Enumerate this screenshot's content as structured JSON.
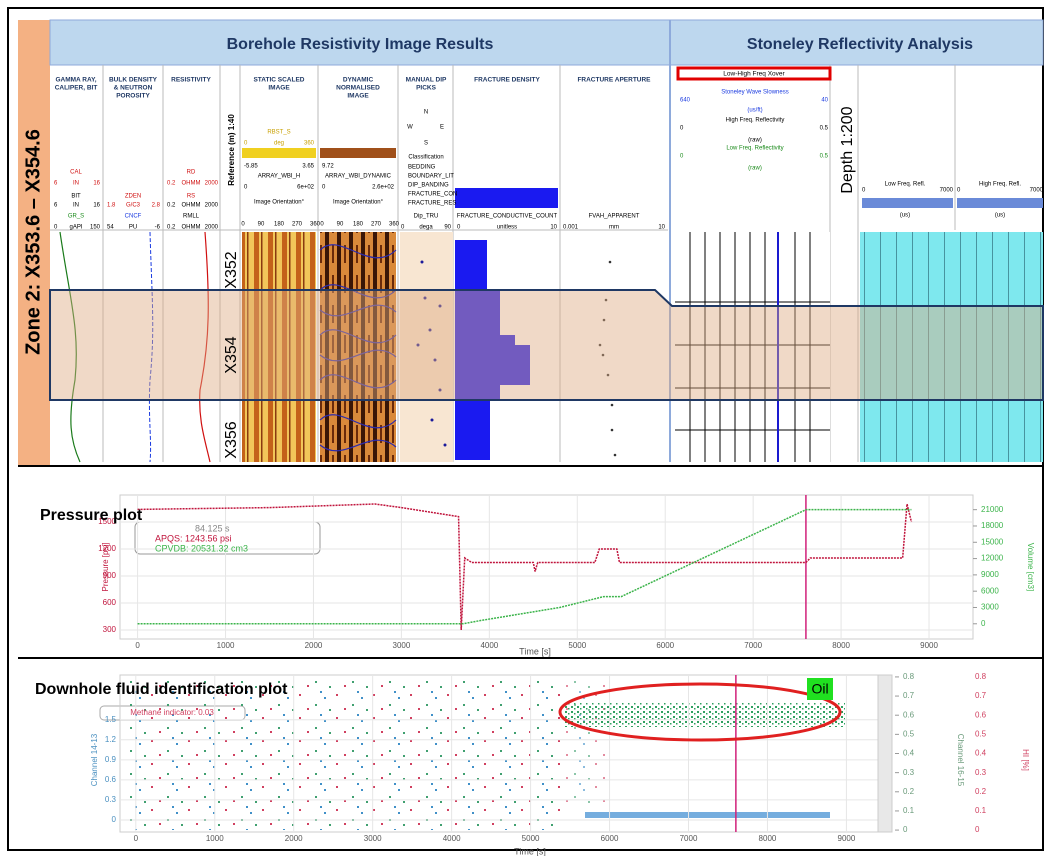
{
  "zone_label": "Zone 2: X353.6 – X354.6",
  "borehole": {
    "title": "Borehole Resistivity Image Results",
    "tracks": [
      [
        "GAMMA RAY,",
        "CALIPER, BIT"
      ],
      [
        "BULK DENSITY",
        "& NEUTRON",
        "POROSITY"
      ],
      [
        "RESISTIVITY"
      ],
      [
        "STATIC SCALED",
        "IMAGE"
      ],
      [
        "DYNAMIC",
        "NORMALISED",
        "IMAGE"
      ],
      [
        "MANUAL DIP",
        "PICKS"
      ],
      [
        "FRACTURE DENSITY"
      ],
      [
        "FRACTURE APERTURE"
      ]
    ],
    "reference": "Reference (m) 1:40",
    "depths": [
      "X352",
      "X354",
      "X356"
    ],
    "curves": [
      "CAL",
      "6",
      "IN",
      "16",
      "BIT",
      "6",
      "IN",
      "16",
      "GR_S",
      "0",
      "gAPI",
      "150",
      "ZDEN",
      "1.8",
      "G/C3",
      "2.8",
      "CNCF",
      "54",
      "PU",
      "-6",
      "RD",
      "0.2",
      "OHMM",
      "2000",
      "RS",
      "0.2",
      "OHMM",
      "2000",
      "RMLL",
      "0.2",
      "OHMM",
      "2000",
      "RBST_S",
      "0",
      "deg",
      "360",
      "-5.85",
      "3.65",
      "ARRAY_WBI_H",
      "0",
      "6e+02",
      "9.72",
      "ARRAY_WBI_DYNAMIC",
      "0",
      "2.6e+02",
      "N",
      "W",
      "E",
      "S",
      "Classification",
      "BEDDING",
      "BOUNDARY_LIT",
      "DIP_BANDING",
      "FRACTURE_CON",
      "FRACTURE_RES",
      "Dip_TRU",
      "0",
      "dega",
      "90",
      "FRACTURE_CONDUCTIVE_COUNT",
      "0",
      "unitless",
      "10",
      "FVAH_APPARENT",
      "0.001",
      "mm",
      "10"
    ],
    "orientation": "Image Orientation°",
    "orientation_ticks": [
      "0",
      "90",
      "180",
      "270",
      "360"
    ]
  },
  "stoneley": {
    "title": "Stoneley Reflectivity Analysis",
    "xover": "Low-High Freq Xover",
    "labels": [
      "Stoneley Wave Slowness",
      "640",
      "40",
      "(us/ft)",
      "High Freq. Reflectivity",
      "0",
      "0.5",
      "(raw)",
      "Low Freq. Reflectivity",
      "0",
      "0.5",
      "(raw)",
      "Low Freq. Refl.",
      "0",
      "7000",
      "(us)",
      "High Freq. Refl.",
      "0",
      "7000",
      "(us)"
    ],
    "depth_scale": "Depth 1:200"
  },
  "pressure_plot": {
    "type": "line",
    "title": "Pressure plot",
    "x_label": "Time [s]",
    "y_label": "Pressure [psi]",
    "y2_label": "Volume [cm3]",
    "readout": [
      "84.125 s",
      "APQS: 1243.56 psi",
      "CPVDB: 20531.32 cm3"
    ],
    "xlim": [
      -200,
      9500
    ],
    "xticks": [
      0,
      1000,
      2000,
      3000,
      4000,
      5000,
      6000,
      7000,
      8000,
      9000
    ],
    "ylim": [
      200,
      1800
    ],
    "yticks": [
      300,
      600,
      900,
      1200,
      1500
    ],
    "y2lim": [
      -2800,
      23700
    ],
    "y2ticks": [
      0,
      3000,
      6000,
      9000,
      12000,
      15000,
      18000,
      21000
    ],
    "grid": true,
    "series": [
      {
        "color": "#c0143c",
        "x": [
          0,
          1500,
          2700,
          3000,
          3650,
          3680,
          3720,
          3800,
          4500,
          4520,
          4550,
          5200,
          5250,
          5450,
          5480,
          7600,
          7650,
          8700,
          8750,
          8800
        ],
        "values": [
          1640,
          1660,
          1700,
          1660,
          1560,
          300,
          1100,
          1050,
          1050,
          950,
          1050,
          1050,
          1200,
          1200,
          1050,
          1050,
          1100,
          1100,
          1700,
          1500
        ]
      },
      {
        "color": "#3cb44b",
        "axis": "y2",
        "x": [
          0,
          3700,
          3900,
          4800,
          5300,
          5500,
          7600,
          8800
        ],
        "values": [
          0,
          0,
          600,
          3000,
          5000,
          5000,
          21000,
          21000
        ]
      }
    ],
    "vlines": [
      7600
    ]
  },
  "fluid_plot": {
    "type": "scatter",
    "title": "Downhole fluid identification plot",
    "x_label": "Time [s]",
    "y_label": "Channel 14-13",
    "y2_label": "Channel 16-15",
    "y3_label": "HI [%]",
    "annotation": "Methane indicator: 0.03",
    "label": "Oil",
    "xlim": [
      -200,
      9400
    ],
    "xticks": [
      0,
      1000,
      2000,
      3000,
      4000,
      5000,
      6000,
      7000,
      8000,
      9000
    ],
    "ylim": [
      -0.18,
      2.17
    ],
    "yticks": [
      0,
      0.3,
      0.6,
      0.9,
      1.2,
      1.5
    ],
    "y2lim": [
      -0.01,
      0.81
    ],
    "y2ticks": [
      0,
      0.1,
      0.2,
      0.3,
      0.4,
      0.5,
      0.6,
      0.7,
      0.8
    ],
    "y3ticks": [
      0,
      0.1,
      0.2,
      0.3,
      0.4,
      0.5,
      0.6,
      0.7,
      0.8
    ],
    "vlines": [
      7600
    ]
  }
}
